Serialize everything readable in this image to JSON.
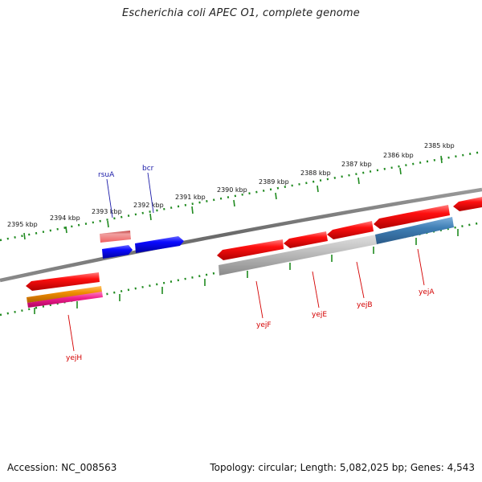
{
  "title": "Escherichia coli APEC O1, complete genome",
  "footer": {
    "accession": "Accession: NC_008563",
    "topology": "Topology: circular; Length: 5,082,025 bp; Genes: 4,543"
  },
  "colors": {
    "backbone": "#7a7a7a",
    "tick_track": "#1f8a1f",
    "reverse_feature": "#e60000",
    "forward_feature": "#0000e6",
    "rrna_like": "#f08080",
    "forward_label": "#1a1aa8",
    "reverse_label": "#d40000",
    "sub_gray": "#b0b0b0",
    "sub_blue": "#3f7fb5",
    "orange": "#f08c00",
    "magenta": "#f0208c"
  },
  "tick_labels": [
    {
      "text": "2385 kbp"
    },
    {
      "text": "2386 kbp"
    },
    {
      "text": "2387 kbp"
    },
    {
      "text": "2388 kbp"
    },
    {
      "text": "2389 kbp"
    },
    {
      "text": "2390 kbp"
    },
    {
      "text": "2391 kbp"
    },
    {
      "text": "2392 kbp"
    },
    {
      "text": "2393 kbp"
    },
    {
      "text": "2394 kbp"
    },
    {
      "text": "2395 kbp"
    }
  ],
  "genes": [
    {
      "name": "rsuA",
      "strand": "forward"
    },
    {
      "name": "bcr",
      "strand": "forward"
    },
    {
      "name": "yejF",
      "strand": "reverse"
    },
    {
      "name": "yejE",
      "strand": "reverse"
    },
    {
      "name": "yejB",
      "strand": "reverse"
    },
    {
      "name": "yejA",
      "strand": "reverse"
    },
    {
      "name": "yejH",
      "strand": "reverse"
    }
  ]
}
